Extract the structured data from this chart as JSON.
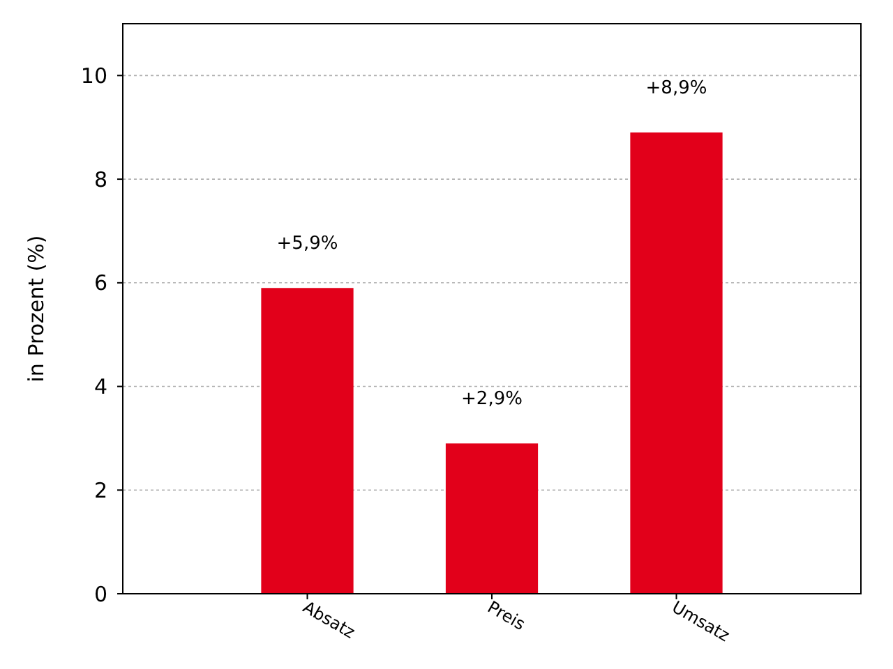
{
  "chart_data": {
    "type": "bar",
    "ylabel": "in Prozent (%)",
    "categories": [
      "Absatz",
      "Preis",
      "Umsatz"
    ],
    "values": [
      5.9,
      2.9,
      8.9
    ],
    "color": "#e2001a",
    "value_labels": [
      "+5,9%",
      "+2,9%",
      "+8,9%"
    ],
    "ylim": [
      0,
      11
    ],
    "yticks": [
      0,
      2,
      4,
      6,
      8,
      10
    ],
    "grid": "y"
  }
}
